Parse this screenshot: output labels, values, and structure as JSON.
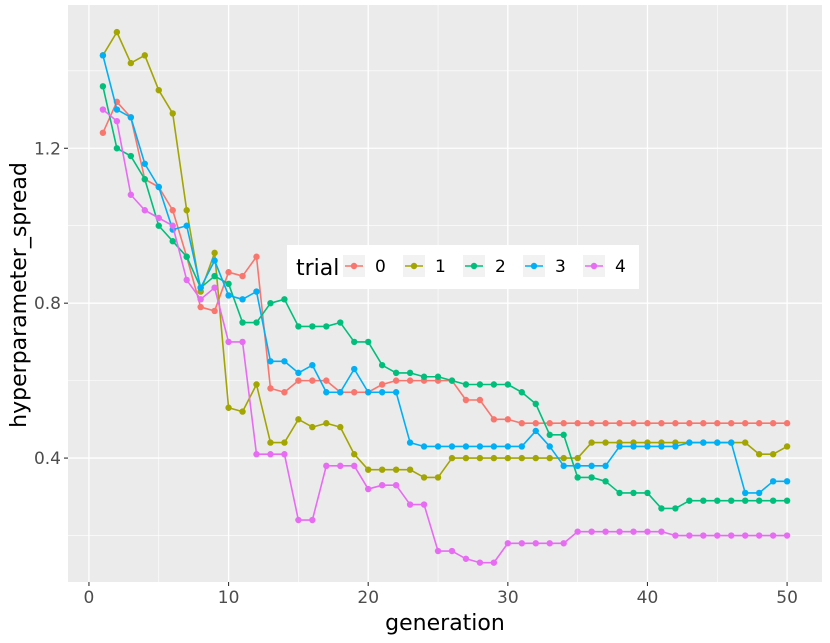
{
  "chart_data": {
    "type": "line",
    "title": "",
    "xlabel": "generation",
    "ylabel": "hyperparameter_spread",
    "xlim": [
      -1.5,
      52.5
    ],
    "ylim": [
      0.08,
      1.57
    ],
    "x_ticks": [
      0,
      10,
      20,
      30,
      40,
      50
    ],
    "x_tick_labels": [
      "0",
      "10",
      "20",
      "30",
      "40",
      "50"
    ],
    "y_ticks": [
      0.4,
      0.8,
      1.2
    ],
    "y_tick_labels": [
      "0.4",
      "0.8",
      "1.2"
    ],
    "grid": true,
    "legend": {
      "title": "trial",
      "position": "center"
    },
    "series": [
      {
        "name": "0",
        "color": "#F8766D",
        "x": [
          1,
          2,
          3,
          4,
          5,
          6,
          7,
          8,
          9,
          10,
          11,
          12,
          13,
          14,
          15,
          16,
          17,
          18,
          19,
          20,
          21,
          22,
          23,
          24,
          25,
          26,
          27,
          28,
          29,
          30,
          31,
          32,
          33,
          34,
          35,
          36,
          37,
          38,
          39,
          40,
          41,
          42,
          43,
          44,
          45,
          46,
          47,
          48,
          49,
          50
        ],
        "values": [
          1.24,
          1.32,
          1.28,
          1.12,
          1.1,
          1.04,
          0.92,
          0.79,
          0.78,
          0.88,
          0.87,
          0.92,
          0.58,
          0.57,
          0.6,
          0.6,
          0.6,
          0.57,
          0.57,
          0.57,
          0.59,
          0.6,
          0.6,
          0.6,
          0.6,
          0.6,
          0.55,
          0.55,
          0.5,
          0.5,
          0.49,
          0.49,
          0.49,
          0.49,
          0.49,
          0.49,
          0.49,
          0.49,
          0.49,
          0.49,
          0.49,
          0.49,
          0.49,
          0.49,
          0.49,
          0.49,
          0.49,
          0.49,
          0.49,
          0.49
        ]
      },
      {
        "name": "1",
        "color": "#A3A500",
        "x": [
          1,
          2,
          3,
          4,
          5,
          6,
          7,
          8,
          9,
          10,
          11,
          12,
          13,
          14,
          15,
          16,
          17,
          18,
          19,
          20,
          21,
          22,
          23,
          24,
          25,
          26,
          27,
          28,
          29,
          30,
          31,
          32,
          33,
          34,
          35,
          36,
          37,
          38,
          39,
          40,
          41,
          42,
          43,
          44,
          45,
          46,
          47,
          48,
          49,
          50
        ],
        "values": [
          1.44,
          1.5,
          1.42,
          1.44,
          1.35,
          1.29,
          1.04,
          0.83,
          0.93,
          0.53,
          0.52,
          0.59,
          0.44,
          0.44,
          0.5,
          0.48,
          0.49,
          0.48,
          0.41,
          0.37,
          0.37,
          0.37,
          0.37,
          0.35,
          0.35,
          0.4,
          0.4,
          0.4,
          0.4,
          0.4,
          0.4,
          0.4,
          0.4,
          0.4,
          0.4,
          0.44,
          0.44,
          0.44,
          0.44,
          0.44,
          0.44,
          0.44,
          0.44,
          0.44,
          0.44,
          0.44,
          0.44,
          0.41,
          0.41,
          0.43
        ]
      },
      {
        "name": "2",
        "color": "#00BF7D",
        "x": [
          1,
          2,
          3,
          4,
          5,
          6,
          7,
          8,
          9,
          10,
          11,
          12,
          13,
          14,
          15,
          16,
          17,
          18,
          19,
          20,
          21,
          22,
          23,
          24,
          25,
          26,
          27,
          28,
          29,
          30,
          31,
          32,
          33,
          34,
          35,
          36,
          37,
          38,
          39,
          40,
          41,
          42,
          43,
          44,
          45,
          46,
          47,
          48,
          49,
          50
        ],
        "values": [
          1.36,
          1.2,
          1.18,
          1.12,
          1.0,
          0.96,
          0.92,
          0.84,
          0.87,
          0.85,
          0.75,
          0.75,
          0.8,
          0.81,
          0.74,
          0.74,
          0.74,
          0.75,
          0.7,
          0.7,
          0.64,
          0.62,
          0.62,
          0.61,
          0.61,
          0.6,
          0.59,
          0.59,
          0.59,
          0.59,
          0.57,
          0.54,
          0.46,
          0.46,
          0.35,
          0.35,
          0.34,
          0.31,
          0.31,
          0.31,
          0.27,
          0.27,
          0.29,
          0.29,
          0.29,
          0.29,
          0.29,
          0.29,
          0.29,
          0.29
        ]
      },
      {
        "name": "3",
        "color": "#00B0F6",
        "x": [
          1,
          2,
          3,
          4,
          5,
          6,
          7,
          8,
          9,
          10,
          11,
          12,
          13,
          14,
          15,
          16,
          17,
          18,
          19,
          20,
          21,
          22,
          23,
          24,
          25,
          26,
          27,
          28,
          29,
          30,
          31,
          32,
          33,
          34,
          35,
          36,
          37,
          38,
          39,
          40,
          41,
          42,
          43,
          44,
          45,
          46,
          47,
          48,
          49,
          50
        ],
        "values": [
          1.44,
          1.3,
          1.28,
          1.16,
          1.1,
          0.99,
          1.0,
          0.84,
          0.91,
          0.82,
          0.81,
          0.83,
          0.65,
          0.65,
          0.62,
          0.64,
          0.57,
          0.57,
          0.63,
          0.57,
          0.57,
          0.57,
          0.44,
          0.43,
          0.43,
          0.43,
          0.43,
          0.43,
          0.43,
          0.43,
          0.43,
          0.47,
          0.43,
          0.38,
          0.38,
          0.38,
          0.38,
          0.43,
          0.43,
          0.43,
          0.43,
          0.43,
          0.44,
          0.44,
          0.44,
          0.44,
          0.31,
          0.31,
          0.34,
          0.34
        ]
      },
      {
        "name": "4",
        "color": "#E76BF3",
        "x": [
          1,
          2,
          3,
          4,
          5,
          6,
          7,
          8,
          9,
          10,
          11,
          12,
          13,
          14,
          15,
          16,
          17,
          18,
          19,
          20,
          21,
          22,
          23,
          24,
          25,
          26,
          27,
          28,
          29,
          30,
          31,
          32,
          33,
          34,
          35,
          36,
          37,
          38,
          39,
          40,
          41,
          42,
          43,
          44,
          45,
          46,
          47,
          48,
          49,
          50
        ],
        "values": [
          1.3,
          1.27,
          1.08,
          1.04,
          1.02,
          1.0,
          0.86,
          0.81,
          0.84,
          0.7,
          0.7,
          0.41,
          0.41,
          0.41,
          0.24,
          0.24,
          0.38,
          0.38,
          0.38,
          0.32,
          0.33,
          0.33,
          0.28,
          0.28,
          0.16,
          0.16,
          0.14,
          0.13,
          0.13,
          0.18,
          0.18,
          0.18,
          0.18,
          0.18,
          0.21,
          0.21,
          0.21,
          0.21,
          0.21,
          0.21,
          0.21,
          0.2,
          0.2,
          0.2,
          0.2,
          0.2,
          0.2,
          0.2,
          0.2,
          0.2
        ]
      }
    ]
  }
}
